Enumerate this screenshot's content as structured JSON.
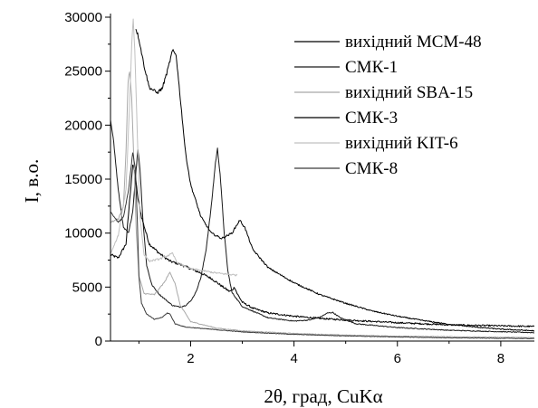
{
  "chart_data": {
    "type": "line",
    "title": "",
    "xlabel": "2θ, град, CuKα",
    "ylabel": "I, в.о.",
    "xlim": [
      0.45,
      8.65
    ],
    "ylim": [
      0,
      30000
    ],
    "x_ticks": [
      2,
      4,
      6,
      8
    ],
    "y_ticks": [
      0,
      5000,
      10000,
      15000,
      20000,
      25000,
      30000
    ],
    "grid": false,
    "legend_position": "top-right",
    "series": [
      {
        "name": "вихідний MCM-48",
        "color": "#000000",
        "noise": 60,
        "points": [
          [
            0.45,
            8000
          ],
          [
            0.6,
            7700
          ],
          [
            0.75,
            9000
          ],
          [
            0.82,
            13000
          ],
          [
            0.88,
            16300
          ],
          [
            0.93,
            15500
          ],
          [
            0.97,
            13500
          ],
          [
            1.05,
            11500
          ],
          [
            1.2,
            9000
          ],
          [
            1.4,
            8100
          ],
          [
            1.6,
            7400
          ],
          [
            1.8,
            7100
          ],
          [
            2.0,
            6700
          ],
          [
            2.2,
            6300
          ],
          [
            2.4,
            5800
          ],
          [
            2.6,
            5100
          ],
          [
            2.75,
            4600
          ],
          [
            2.8,
            4700
          ],
          [
            2.85,
            5000
          ],
          [
            2.9,
            4400
          ],
          [
            3.0,
            3600
          ],
          [
            3.2,
            3050
          ],
          [
            3.5,
            2600
          ],
          [
            4.0,
            2300
          ],
          [
            4.5,
            2100
          ],
          [
            5.0,
            1950
          ],
          [
            6.0,
            1700
          ],
          [
            7.0,
            1500
          ],
          [
            8.65,
            1350
          ]
        ]
      },
      {
        "name": "СМК-1",
        "color": "#1a1a1a",
        "noise": 35,
        "points": [
          [
            0.45,
            20500
          ],
          [
            0.5,
            19000
          ],
          [
            0.6,
            14000
          ],
          [
            0.7,
            10500
          ],
          [
            0.8,
            10000
          ],
          [
            0.88,
            12000
          ],
          [
            0.93,
            15000
          ],
          [
            0.98,
            17800
          ],
          [
            1.02,
            16000
          ],
          [
            1.08,
            11000
          ],
          [
            1.15,
            7000
          ],
          [
            1.25,
            5200
          ],
          [
            1.4,
            4300
          ],
          [
            1.55,
            3700
          ],
          [
            1.65,
            3300
          ],
          [
            1.8,
            3150
          ],
          [
            1.9,
            3300
          ],
          [
            2.0,
            3700
          ],
          [
            2.1,
            4500
          ],
          [
            2.2,
            5900
          ],
          [
            2.3,
            8500
          ],
          [
            2.4,
            12500
          ],
          [
            2.48,
            16500
          ],
          [
            2.52,
            17800
          ],
          [
            2.57,
            15500
          ],
          [
            2.65,
            10000
          ],
          [
            2.72,
            6500
          ],
          [
            2.8,
            4500
          ],
          [
            3.0,
            3200
          ],
          [
            3.5,
            2150
          ],
          [
            4.0,
            1850
          ],
          [
            4.3,
            1950
          ],
          [
            4.5,
            2200
          ],
          [
            4.65,
            2600
          ],
          [
            4.75,
            2650
          ],
          [
            4.9,
            2150
          ],
          [
            5.2,
            1600
          ],
          [
            6.0,
            1250
          ],
          [
            7.0,
            1000
          ],
          [
            8.65,
            780
          ]
        ]
      },
      {
        "name": "вихідний SBA-15",
        "color": "#a8a8a8",
        "noise": 30,
        "points": [
          [
            0.45,
            11000
          ],
          [
            0.6,
            11300
          ],
          [
            0.7,
            12500
          ],
          [
            0.75,
            17500
          ],
          [
            0.79,
            24000
          ],
          [
            0.82,
            25000
          ],
          [
            0.86,
            22500
          ],
          [
            0.9,
            17000
          ],
          [
            0.95,
            10000
          ],
          [
            1.0,
            6000
          ],
          [
            1.1,
            4400
          ],
          [
            1.3,
            4300
          ],
          [
            1.5,
            5500
          ],
          [
            1.6,
            6400
          ],
          [
            1.7,
            5300
          ],
          [
            1.8,
            3300
          ],
          [
            2.0,
            1800
          ],
          [
            2.5,
            1200
          ],
          [
            3.0,
            950
          ],
          [
            4.0,
            700
          ],
          [
            5.0,
            550
          ],
          [
            6.0,
            450
          ],
          [
            8.65,
            320
          ]
        ]
      },
      {
        "name": "СМК-3",
        "color": "#000000",
        "noise": 40,
        "points": [
          [
            0.94,
            29000
          ],
          [
            1.0,
            28000
          ],
          [
            1.1,
            25500
          ],
          [
            1.2,
            23500
          ],
          [
            1.35,
            23000
          ],
          [
            1.45,
            23400
          ],
          [
            1.55,
            25000
          ],
          [
            1.65,
            26900
          ],
          [
            1.72,
            26500
          ],
          [
            1.8,
            22500
          ],
          [
            1.9,
            17500
          ],
          [
            2.0,
            14500
          ],
          [
            2.2,
            11500
          ],
          [
            2.4,
            10000
          ],
          [
            2.6,
            9500
          ],
          [
            2.8,
            10000
          ],
          [
            2.95,
            11200
          ],
          [
            3.05,
            10500
          ],
          [
            3.2,
            8500
          ],
          [
            3.5,
            6800
          ],
          [
            4.0,
            5400
          ],
          [
            4.5,
            4300
          ],
          [
            5.0,
            3500
          ],
          [
            5.5,
            2800
          ],
          [
            6.0,
            2300
          ],
          [
            6.5,
            1900
          ],
          [
            7.0,
            1550
          ],
          [
            7.5,
            1300
          ],
          [
            8.0,
            1100
          ],
          [
            8.65,
            950
          ]
        ]
      },
      {
        "name": "вихідний KIT-6",
        "color": "#c0c0c0",
        "noise": 45,
        "points": [
          [
            0.45,
            8000
          ],
          [
            0.6,
            9800
          ],
          [
            0.75,
            14000
          ],
          [
            0.82,
            22000
          ],
          [
            0.86,
            27500
          ],
          [
            0.89,
            29800
          ],
          [
            0.92,
            27000
          ],
          [
            0.97,
            19000
          ],
          [
            1.02,
            11500
          ],
          [
            1.1,
            8000
          ],
          [
            1.2,
            7400
          ],
          [
            1.4,
            7600
          ],
          [
            1.55,
            7900
          ],
          [
            1.65,
            8100
          ],
          [
            1.75,
            7200
          ],
          [
            2.0,
            6700
          ],
          [
            2.5,
            6300
          ],
          [
            2.9,
            6100
          ]
        ]
      },
      {
        "name": "СМК-8",
        "color": "#3a3a3a",
        "noise": 25,
        "points": [
          [
            0.45,
            12000
          ],
          [
            0.6,
            11000
          ],
          [
            0.7,
            11500
          ],
          [
            0.8,
            14000
          ],
          [
            0.88,
            17500
          ],
          [
            0.93,
            16000
          ],
          [
            0.97,
            11000
          ],
          [
            1.0,
            6000
          ],
          [
            1.05,
            3500
          ],
          [
            1.15,
            2500
          ],
          [
            1.3,
            2000
          ],
          [
            1.45,
            2200
          ],
          [
            1.55,
            2600
          ],
          [
            1.6,
            2500
          ],
          [
            1.7,
            1600
          ],
          [
            1.9,
            1300
          ],
          [
            2.5,
            1050
          ],
          [
            3.0,
            850
          ],
          [
            4.0,
            620
          ],
          [
            5.0,
            480
          ],
          [
            6.0,
            380
          ],
          [
            7.0,
            300
          ],
          [
            8.65,
            230
          ]
        ]
      }
    ]
  }
}
